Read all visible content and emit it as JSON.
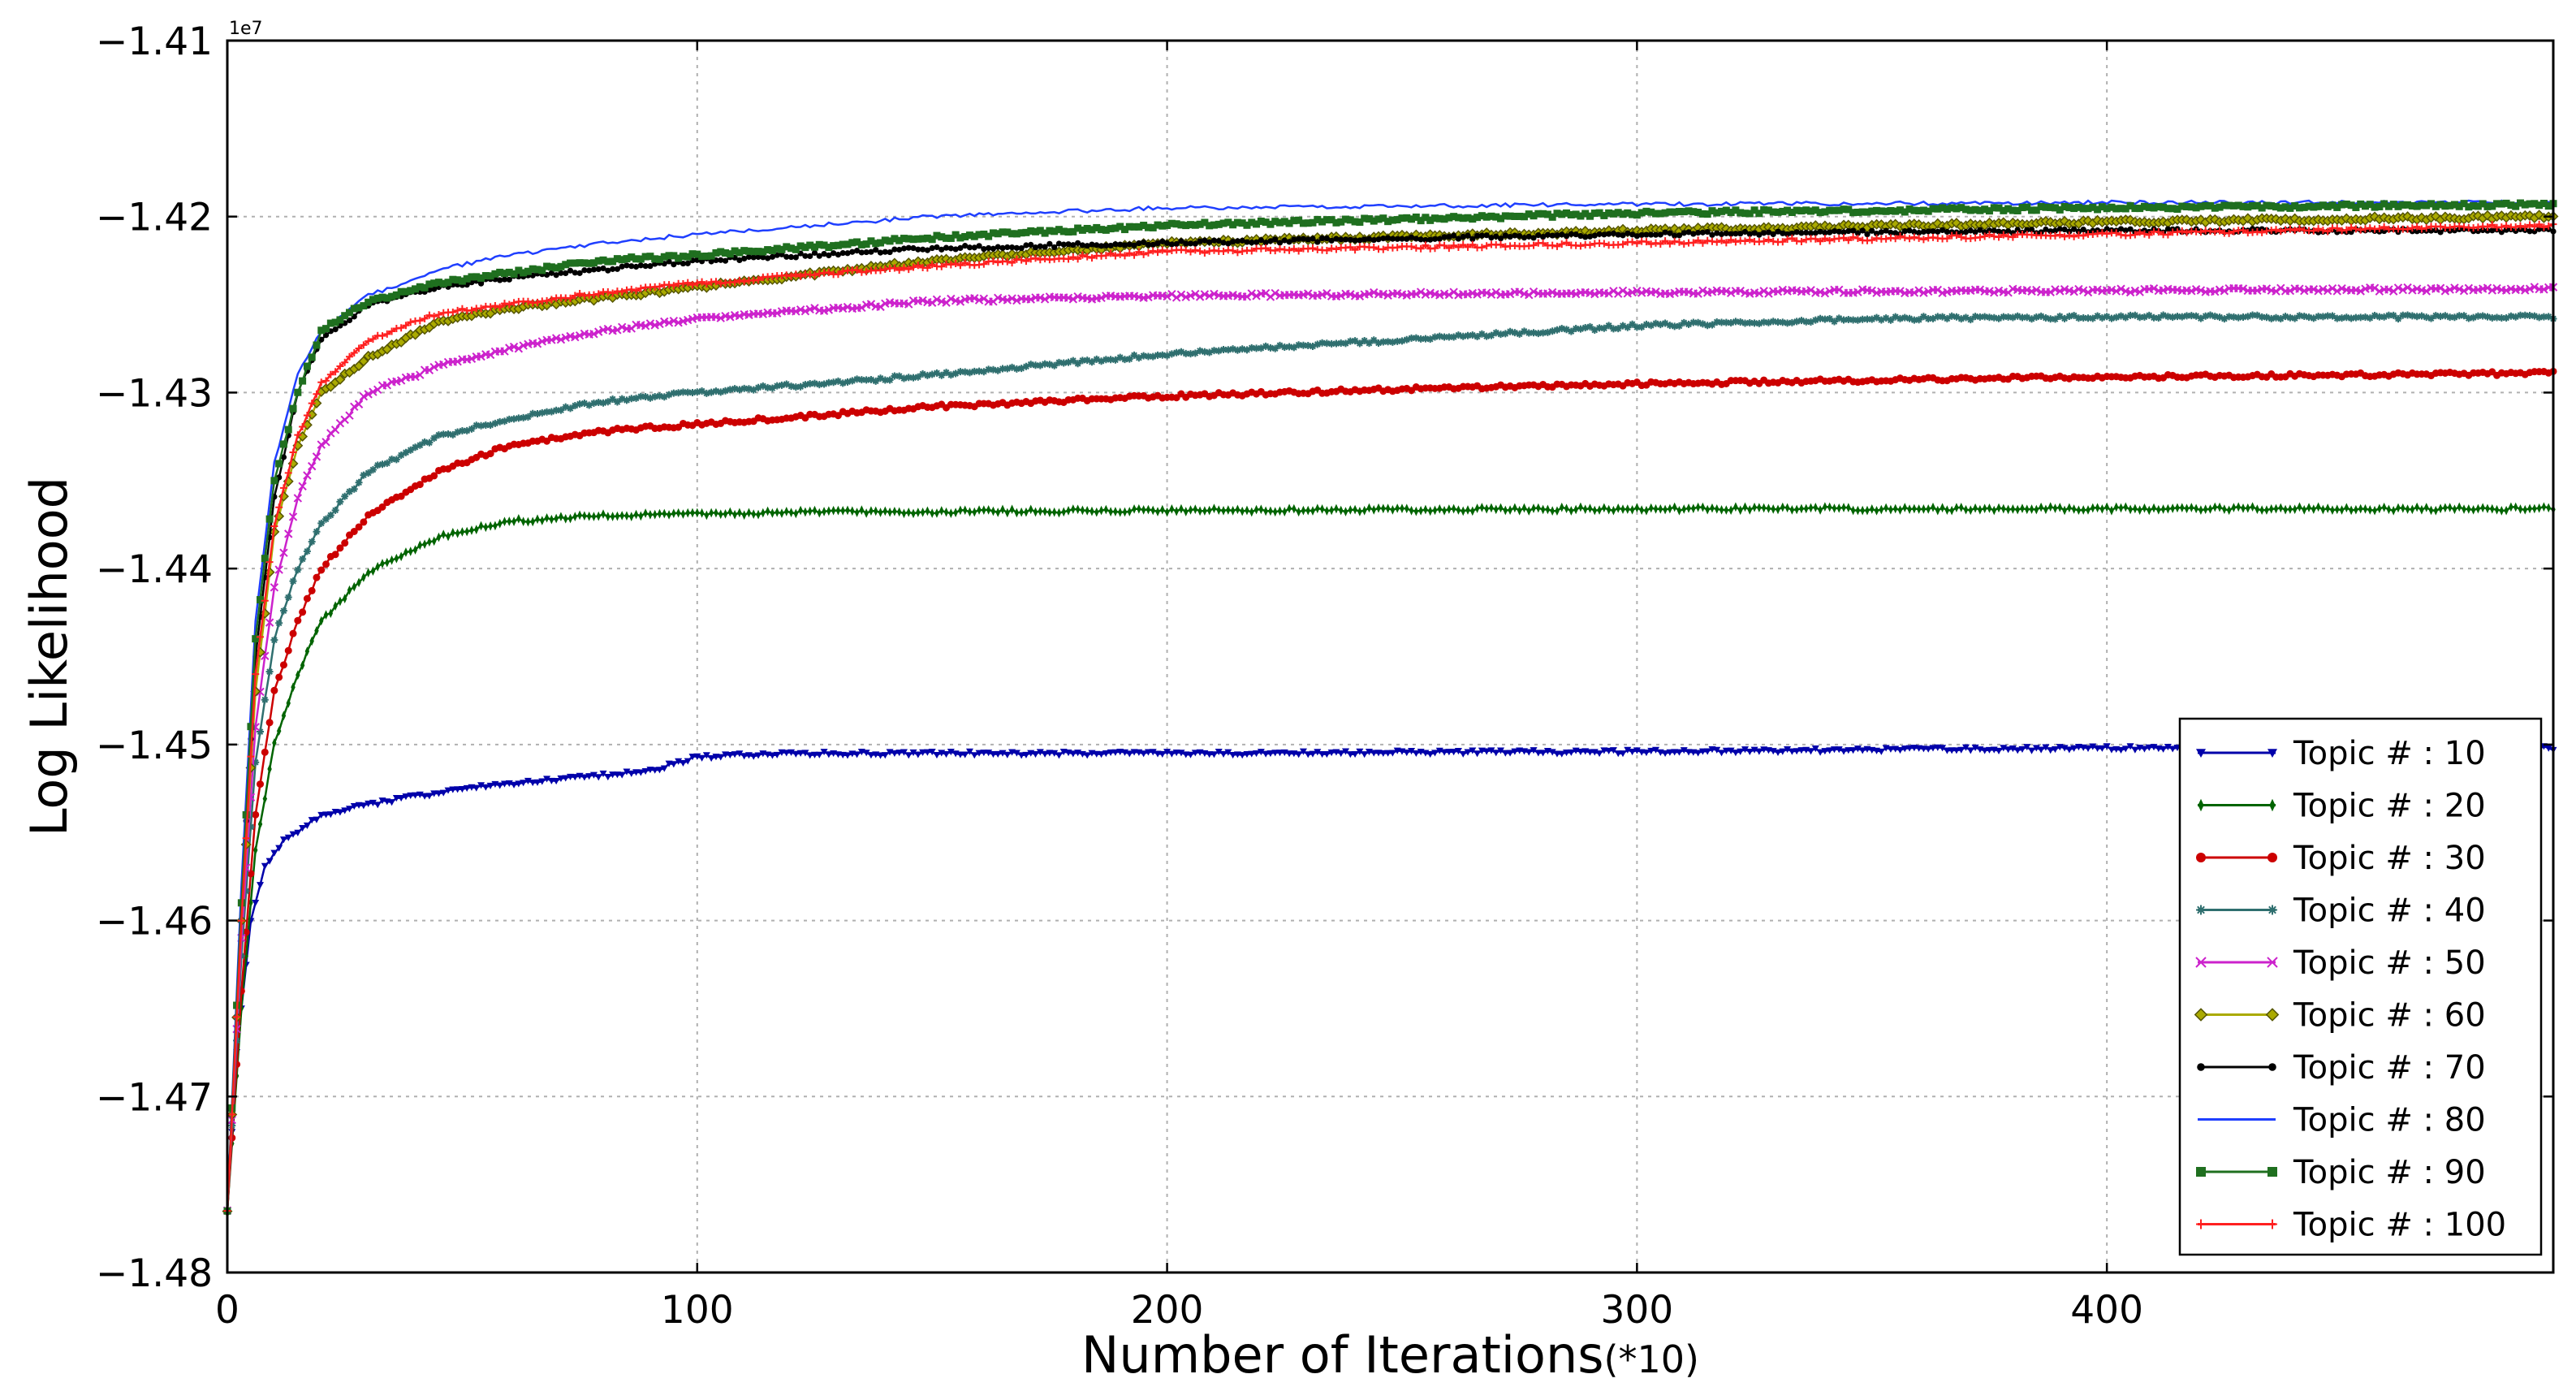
{
  "chart_data": {
    "type": "line",
    "xlabel": "Number of Iterations",
    "xlabel_suffix": "(*10)",
    "ylabel": "Log Likelihood",
    "y_offset_label": "1e7",
    "xlim": [
      0,
      495
    ],
    "ylim": [
      -1.48,
      -1.41
    ],
    "x_ticks": [
      0,
      100,
      200,
      300,
      400
    ],
    "x_tick_labels": [
      "0",
      "100",
      "200",
      "300",
      "400"
    ],
    "y_ticks": [
      -1.41,
      -1.42,
      -1.43,
      -1.44,
      -1.45,
      -1.46,
      -1.47,
      -1.48
    ],
    "y_tick_labels": [
      "−1.41",
      "−1.42",
      "−1.43",
      "−1.44",
      "−1.45",
      "−1.46",
      "−1.47",
      "−1.48"
    ],
    "grid": true,
    "legend_position": "lower-right",
    "series": [
      {
        "name": "Topic # : 10",
        "color": "#0000aa",
        "marker": "triangle-down",
        "points": [
          [
            0,
            -1.4765
          ],
          [
            2,
            -1.4675
          ],
          [
            5,
            -1.46
          ],
          [
            8,
            -1.457
          ],
          [
            12,
            -1.4555
          ],
          [
            20,
            -1.454
          ],
          [
            30,
            -1.4534
          ],
          [
            50,
            -1.4525
          ],
          [
            70,
            -1.452
          ],
          [
            90,
            -1.4515
          ],
          [
            100,
            -1.4507
          ],
          [
            120,
            -1.4505
          ],
          [
            200,
            -1.4505
          ],
          [
            300,
            -1.4504
          ],
          [
            400,
            -1.4502
          ],
          [
            495,
            -1.4502
          ]
        ]
      },
      {
        "name": "Topic # : 20",
        "color": "#006400",
        "marker": "thin-diamond",
        "points": [
          [
            0,
            -1.4765
          ],
          [
            3,
            -1.465
          ],
          [
            6,
            -1.456
          ],
          [
            10,
            -1.45
          ],
          [
            15,
            -1.446
          ],
          [
            20,
            -1.443
          ],
          [
            30,
            -1.4402
          ],
          [
            45,
            -1.4382
          ],
          [
            60,
            -1.4373
          ],
          [
            80,
            -1.437
          ],
          [
            120,
            -1.4368
          ],
          [
            200,
            -1.4367
          ],
          [
            300,
            -1.4366
          ],
          [
            400,
            -1.4366
          ],
          [
            495,
            -1.4366
          ]
        ]
      },
      {
        "name": "Topic # : 30",
        "color": "#cc0000",
        "marker": "circle",
        "points": [
          [
            0,
            -1.4765
          ],
          [
            3,
            -1.464
          ],
          [
            6,
            -1.454
          ],
          [
            10,
            -1.447
          ],
          [
            15,
            -1.443
          ],
          [
            20,
            -1.44
          ],
          [
            30,
            -1.437
          ],
          [
            45,
            -1.4345
          ],
          [
            60,
            -1.433
          ],
          [
            80,
            -1.4322
          ],
          [
            100,
            -1.4318
          ],
          [
            150,
            -1.4308
          ],
          [
            200,
            -1.4302
          ],
          [
            250,
            -1.4298
          ],
          [
            300,
            -1.4295
          ],
          [
            400,
            -1.4291
          ],
          [
            495,
            -1.4289
          ]
        ]
      },
      {
        "name": "Topic # : 40",
        "color": "#2f6f6f",
        "marker": "star",
        "points": [
          [
            0,
            -1.4765
          ],
          [
            3,
            -1.462
          ],
          [
            6,
            -1.451
          ],
          [
            10,
            -1.444
          ],
          [
            15,
            -1.44
          ],
          [
            20,
            -1.4375
          ],
          [
            30,
            -1.4345
          ],
          [
            45,
            -1.4325
          ],
          [
            60,
            -1.4315
          ],
          [
            80,
            -1.4305
          ],
          [
            100,
            -1.43
          ],
          [
            150,
            -1.429
          ],
          [
            200,
            -1.4278
          ],
          [
            250,
            -1.427
          ],
          [
            300,
            -1.4262
          ],
          [
            350,
            -1.4258
          ],
          [
            400,
            -1.4257
          ],
          [
            495,
            -1.4257
          ]
        ]
      },
      {
        "name": "Topic # : 50",
        "color": "#cc22cc",
        "marker": "x",
        "points": [
          [
            0,
            -1.4765
          ],
          [
            3,
            -1.461
          ],
          [
            6,
            -1.449
          ],
          [
            10,
            -1.441
          ],
          [
            15,
            -1.436
          ],
          [
            20,
            -1.433
          ],
          [
            30,
            -1.43
          ],
          [
            45,
            -1.4285
          ],
          [
            60,
            -1.4275
          ],
          [
            80,
            -1.4265
          ],
          [
            100,
            -1.4258
          ],
          [
            150,
            -1.4248
          ],
          [
            200,
            -1.4245
          ],
          [
            300,
            -1.4243
          ],
          [
            400,
            -1.4242
          ],
          [
            495,
            -1.4241
          ]
        ]
      },
      {
        "name": "Topic # : 60",
        "color": "#aaaa00",
        "marker": "diamond",
        "points": [
          [
            0,
            -1.4765
          ],
          [
            3,
            -1.46
          ],
          [
            6,
            -1.447
          ],
          [
            10,
            -1.438
          ],
          [
            15,
            -1.433
          ],
          [
            20,
            -1.43
          ],
          [
            30,
            -1.428
          ],
          [
            45,
            -1.426
          ],
          [
            60,
            -1.4252
          ],
          [
            80,
            -1.4246
          ],
          [
            100,
            -1.424
          ],
          [
            150,
            -1.4225
          ],
          [
            200,
            -1.4215
          ],
          [
            300,
            -1.4208
          ],
          [
            400,
            -1.4203
          ],
          [
            495,
            -1.42
          ]
        ]
      },
      {
        "name": "Topic # : 70",
        "color": "#000000",
        "marker": "circle-small",
        "points": [
          [
            0,
            -1.4765
          ],
          [
            3,
            -1.459
          ],
          [
            6,
            -1.445
          ],
          [
            10,
            -1.436
          ],
          [
            15,
            -1.43
          ],
          [
            20,
            -1.427
          ],
          [
            30,
            -1.425
          ],
          [
            45,
            -1.424
          ],
          [
            60,
            -1.4235
          ],
          [
            80,
            -1.423
          ],
          [
            100,
            -1.4225
          ],
          [
            150,
            -1.4218
          ],
          [
            200,
            -1.4215
          ],
          [
            300,
            -1.421
          ],
          [
            400,
            -1.4208
          ],
          [
            495,
            -1.4208
          ]
        ]
      },
      {
        "name": "Topic # : 80",
        "color": "#1f3fff",
        "marker": "none",
        "points": [
          [
            0,
            -1.4765
          ],
          [
            3,
            -1.458
          ],
          [
            6,
            -1.443
          ],
          [
            10,
            -1.434
          ],
          [
            15,
            -1.429
          ],
          [
            20,
            -1.4265
          ],
          [
            30,
            -1.4245
          ],
          [
            45,
            -1.423
          ],
          [
            60,
            -1.4222
          ],
          [
            80,
            -1.4215
          ],
          [
            100,
            -1.421
          ],
          [
            150,
            -1.42
          ],
          [
            200,
            -1.4195
          ],
          [
            300,
            -1.4193
          ],
          [
            400,
            -1.4192
          ],
          [
            495,
            -1.4192
          ]
        ]
      },
      {
        "name": "Topic # : 90",
        "color": "#1f6f1f",
        "marker": "square",
        "points": [
          [
            0,
            -1.4765
          ],
          [
            3,
            -1.459
          ],
          [
            6,
            -1.444
          ],
          [
            10,
            -1.435
          ],
          [
            15,
            -1.43
          ],
          [
            20,
            -1.4265
          ],
          [
            30,
            -1.4248
          ],
          [
            45,
            -1.4238
          ],
          [
            60,
            -1.4232
          ],
          [
            80,
            -1.4225
          ],
          [
            100,
            -1.4222
          ],
          [
            150,
            -1.4212
          ],
          [
            200,
            -1.4205
          ],
          [
            300,
            -1.4198
          ],
          [
            400,
            -1.4195
          ],
          [
            495,
            -1.4193
          ]
        ]
      },
      {
        "name": "Topic # : 100",
        "color": "#ff2020",
        "marker": "plus",
        "points": [
          [
            0,
            -1.4765
          ],
          [
            3,
            -1.46
          ],
          [
            6,
            -1.446
          ],
          [
            10,
            -1.4375
          ],
          [
            15,
            -1.4325
          ],
          [
            20,
            -1.4295
          ],
          [
            30,
            -1.427
          ],
          [
            45,
            -1.4255
          ],
          [
            60,
            -1.425
          ],
          [
            80,
            -1.4243
          ],
          [
            100,
            -1.4238
          ],
          [
            150,
            -1.4228
          ],
          [
            200,
            -1.422
          ],
          [
            300,
            -1.4215
          ],
          [
            400,
            -1.421
          ],
          [
            495,
            -1.4205
          ]
        ]
      }
    ]
  }
}
